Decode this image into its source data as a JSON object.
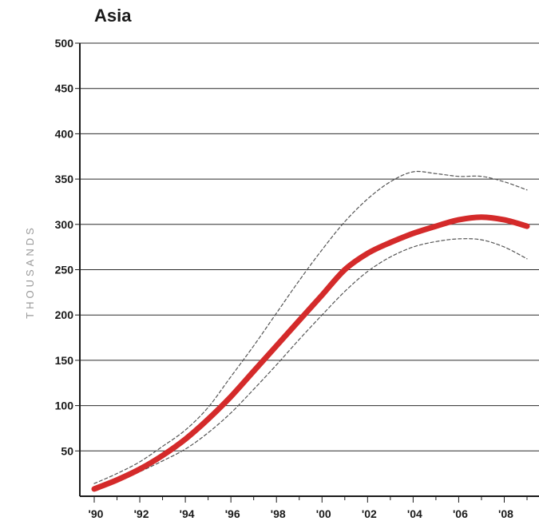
{
  "chart_data": {
    "type": "line",
    "title": "Asia",
    "ylabel": "THOUSANDS",
    "xlabel": "",
    "xlim": [
      1990,
      2009
    ],
    "ylim": [
      0,
      500
    ],
    "yticks": [
      50,
      100,
      150,
      200,
      250,
      300,
      350,
      400,
      450,
      500
    ],
    "xticks": [
      {
        "value": 1990,
        "label": "'90"
      },
      {
        "value": 1992,
        "label": "'92"
      },
      {
        "value": 1994,
        "label": "'94"
      },
      {
        "value": 1996,
        "label": "'96"
      },
      {
        "value": 1998,
        "label": "'98"
      },
      {
        "value": 2000,
        "label": "'00"
      },
      {
        "value": 2002,
        "label": "'02"
      },
      {
        "value": 2004,
        "label": "'04"
      },
      {
        "value": 2006,
        "label": "'06"
      },
      {
        "value": 2008,
        "label": "'08"
      }
    ],
    "grid": true,
    "series": [
      {
        "role": "central estimate",
        "style": "solid",
        "color": "#d42a2a",
        "x": [
          1990,
          1991,
          1992,
          1993,
          1994,
          1995,
          1996,
          1997,
          1998,
          1999,
          2000,
          2001,
          2002,
          2003,
          2004,
          2005,
          2006,
          2007,
          2008,
          2009
        ],
        "y": [
          8,
          18,
          30,
          45,
          63,
          85,
          110,
          138,
          166,
          194,
          222,
          250,
          268,
          280,
          290,
          298,
          305,
          308,
          305,
          298
        ]
      },
      {
        "role": "upper bound",
        "style": "dashed",
        "color": "#555555",
        "x": [
          1990,
          1991,
          1992,
          1993,
          1994,
          1995,
          1996,
          1997,
          1998,
          1999,
          2000,
          2001,
          2002,
          2003,
          2004,
          2005,
          2006,
          2007,
          2008,
          2009
        ],
        "y": [
          14,
          25,
          38,
          55,
          73,
          98,
          132,
          166,
          202,
          238,
          272,
          303,
          328,
          347,
          358,
          356,
          353,
          353,
          347,
          338
        ]
      },
      {
        "role": "lower bound",
        "style": "dashed",
        "color": "#555555",
        "x": [
          1990,
          1991,
          1992,
          1993,
          1994,
          1995,
          1996,
          1997,
          1998,
          1999,
          2000,
          2001,
          2002,
          2003,
          2004,
          2005,
          2006,
          2007,
          2008,
          2009
        ],
        "y": [
          7,
          16,
          27,
          39,
          52,
          70,
          92,
          118,
          145,
          173,
          200,
          226,
          248,
          264,
          275,
          281,
          284,
          283,
          275,
          262
        ]
      }
    ]
  }
}
